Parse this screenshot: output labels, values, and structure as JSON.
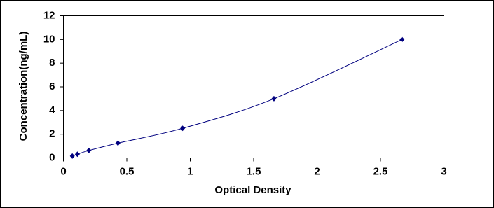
{
  "chart_data": {
    "type": "scatter",
    "x_label": "Optical Density",
    "y_label": "Concentration(ng/mL)",
    "x": [
      0.07,
      0.11,
      0.2,
      0.43,
      0.94,
      1.66,
      2.67
    ],
    "values": [
      0.156,
      0.312,
      0.625,
      1.25,
      2.5,
      5,
      10
    ],
    "color": "#00007f",
    "smooth_line": true,
    "xlim": [
      0,
      3
    ],
    "xticks": [
      0,
      0.5,
      1,
      1.5,
      2,
      2.5,
      3
    ],
    "ylim": [
      0,
      12
    ],
    "yticks": [
      0,
      2,
      4,
      6,
      8,
      10,
      12
    ],
    "grid": false
  }
}
